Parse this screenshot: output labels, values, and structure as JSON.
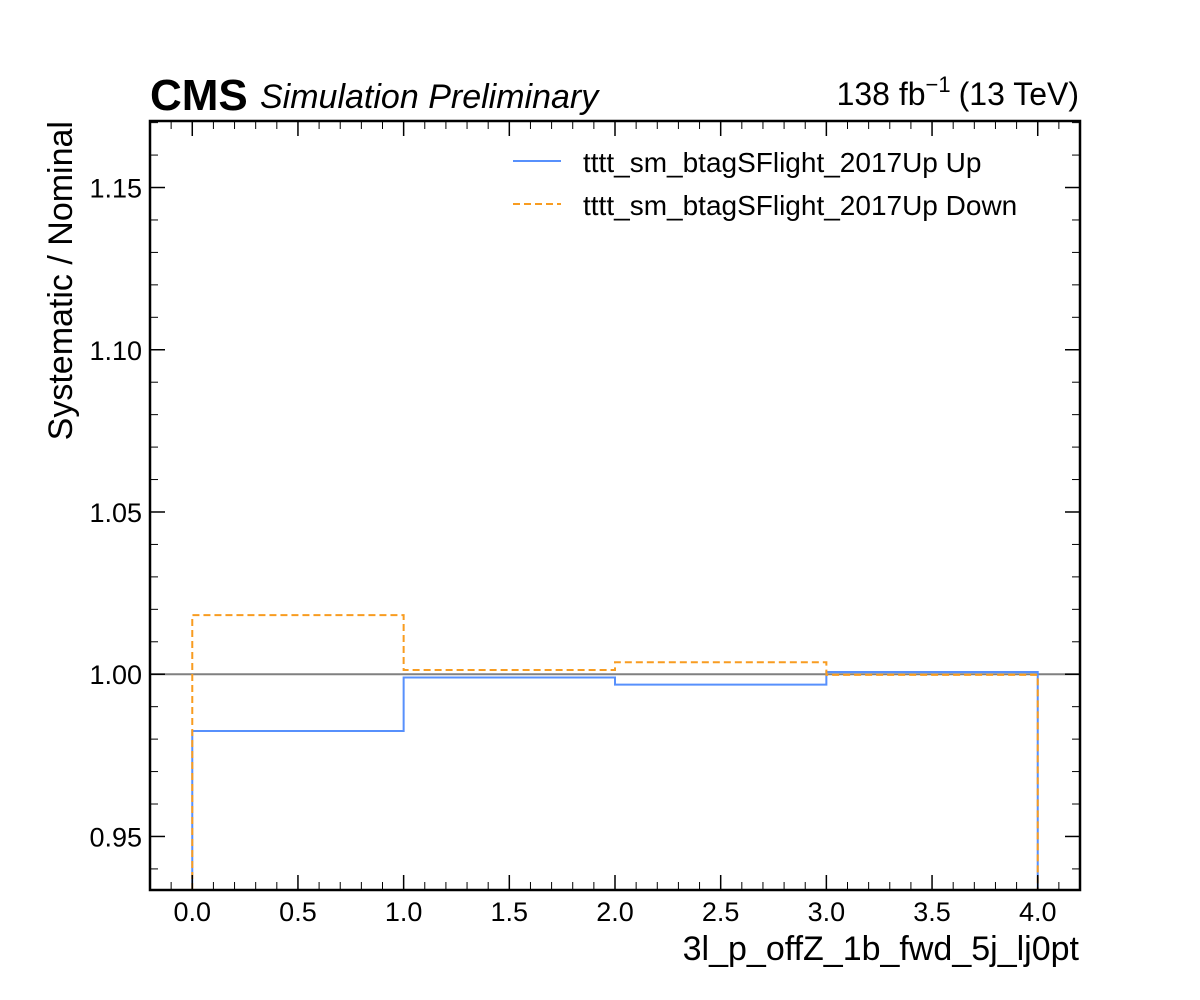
{
  "header": {
    "experiment": "CMS",
    "status": "Simulation Preliminary",
    "lumi_value": "138 fb",
    "lumi_exponent": "−1",
    "energy": "(13 TeV)"
  },
  "chart_data": {
    "type": "line",
    "drawstyle": "steps",
    "xlabel": "3l_p_offZ_1b_fwd_5j_lj0pt",
    "ylabel": "Systematic / Nominal",
    "xlim": [
      -0.2,
      4.2
    ],
    "ylim": [
      0.9335,
      1.1705
    ],
    "x_ticks": [
      0.0,
      0.5,
      1.0,
      1.5,
      2.0,
      2.5,
      3.0,
      3.5,
      4.0
    ],
    "x_tick_labels": [
      "0.0",
      "0.5",
      "1.0",
      "1.5",
      "2.0",
      "2.5",
      "3.0",
      "3.5",
      "4.0"
    ],
    "y_ticks": [
      0.95,
      1.0,
      1.05,
      1.1,
      1.15
    ],
    "y_tick_labels": [
      "0.95",
      "1.00",
      "1.05",
      "1.10",
      "1.15"
    ],
    "bin_edges": [
      0,
      1,
      2,
      3,
      4
    ],
    "reference_line": 1.0,
    "legend_position": "upper-right",
    "series": [
      {
        "name": "tttt_sm_btagSFlight_2017Up Up",
        "values": [
          0.9825,
          0.999,
          0.9968,
          1.0007
        ],
        "color": "#5790fc",
        "linestyle": "solid"
      },
      {
        "name": "tttt_sm_btagSFlight_2017Up Down",
        "values": [
          1.0182,
          1.0013,
          1.0037,
          0.9998
        ],
        "color": "#f89c20",
        "linestyle": "dashed"
      }
    ],
    "reference_color": "#808080"
  }
}
